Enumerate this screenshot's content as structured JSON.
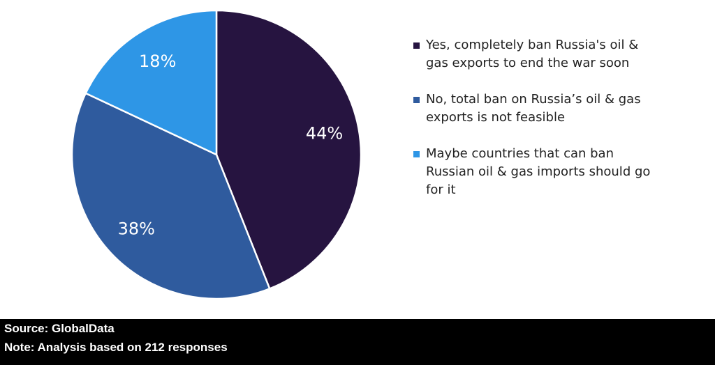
{
  "chart_data": {
    "type": "pie",
    "categories": [
      "Yes, completely ban Russia's oil & gas exports to end the war soon",
      "No, total ban on Russia’s oil & gas exports is not feasible",
      "Maybe countries that can ban Russian oil & gas imports should go for it"
    ],
    "values": [
      44,
      38,
      18
    ],
    "value_labels": [
      "44%",
      "38%",
      "18%"
    ],
    "colors": [
      "#261440",
      "#2f5b9e",
      "#2e96e6"
    ],
    "source": "Source: GlobalData",
    "note": "Note: Analysis based on 212 responses"
  }
}
